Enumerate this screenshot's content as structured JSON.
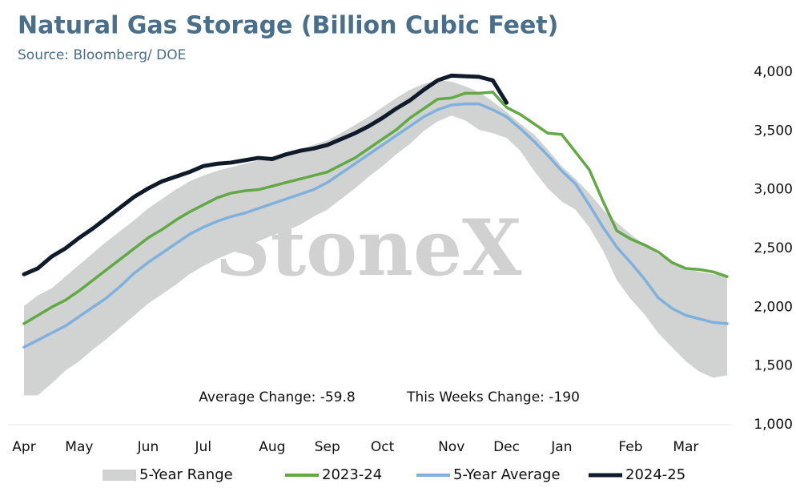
{
  "chart_data": {
    "type": "line",
    "title": "Natural Gas Storage (Billion Cubic Feet)",
    "subtitle": "Source: Bloomberg/ DOE",
    "watermark": "StoneX",
    "annotations": [
      "Average Change: -59.8",
      "This Weeks Change: -190"
    ],
    "x": [
      0,
      1,
      2,
      3,
      4,
      5,
      6,
      7,
      8,
      9,
      10,
      11,
      12,
      13,
      14,
      15,
      16,
      17,
      18,
      19,
      20,
      21,
      22,
      23,
      24,
      25,
      26,
      27,
      28,
      29,
      30,
      31,
      32,
      33,
      34,
      35,
      36,
      37,
      38,
      39,
      40,
      41,
      42,
      43,
      44,
      45,
      46,
      47,
      48,
      49,
      50,
      51
    ],
    "xlim": [
      0,
      51
    ],
    "xticks": [
      {
        "value": 0,
        "label": "Apr"
      },
      {
        "value": 4,
        "label": "May"
      },
      {
        "value": 9,
        "label": "Jun"
      },
      {
        "value": 13,
        "label": "Jul"
      },
      {
        "value": 18,
        "label": "Aug"
      },
      {
        "value": 22,
        "label": "Sep"
      },
      {
        "value": 26,
        "label": "Oct"
      },
      {
        "value": 31,
        "label": "Nov"
      },
      {
        "value": 35,
        "label": "Dec"
      },
      {
        "value": 39,
        "label": "Jan"
      },
      {
        "value": 44,
        "label": "Feb"
      },
      {
        "value": 48,
        "label": "Mar"
      }
    ],
    "ylim": [
      1000,
      4000
    ],
    "yticks": [
      {
        "value": 1000,
        "label": "1,000"
      },
      {
        "value": 1500,
        "label": "1,500"
      },
      {
        "value": 2000,
        "label": "2,000"
      },
      {
        "value": 2500,
        "label": "2,500"
      },
      {
        "value": 3000,
        "label": "3,000"
      },
      {
        "value": 3500,
        "label": "3,500"
      },
      {
        "value": 4000,
        "label": "4,000"
      }
    ],
    "grid": false,
    "legend": "bottom",
    "series": [
      {
        "name": "5-Year Range",
        "kind": "range",
        "color": "#d1d3d3",
        "values": [
          2010,
          2100,
          2160,
          2260,
          2360,
          2460,
          2560,
          2650,
          2740,
          2840,
          2920,
          3000,
          3070,
          3120,
          3160,
          3190,
          3220,
          3250,
          3280,
          3310,
          3340,
          3380,
          3420,
          3480,
          3550,
          3620,
          3700,
          3780,
          3850,
          3900,
          3930,
          3920,
          3880,
          3830,
          3750,
          3660,
          3560,
          3470,
          3340,
          3200,
          3090,
          2970,
          2830,
          2720,
          2620,
          2530,
          2450,
          2380,
          2330,
          2300,
          2280,
          2270
        ],
        "lower": [
          1250,
          1250,
          1350,
          1460,
          1540,
          1640,
          1730,
          1830,
          1930,
          2030,
          2110,
          2190,
          2280,
          2350,
          2410,
          2460,
          2510,
          2560,
          2610,
          2650,
          2700,
          2770,
          2830,
          2920,
          3010,
          3110,
          3200,
          3300,
          3390,
          3500,
          3580,
          3630,
          3590,
          3510,
          3480,
          3440,
          3330,
          3160,
          3010,
          2900,
          2830,
          2680,
          2480,
          2230,
          2070,
          1940,
          1780,
          1660,
          1540,
          1450,
          1400,
          1420
        ]
      },
      {
        "name": "2023-24",
        "color": "#62a844",
        "values": [
          1860,
          1930,
          2000,
          2060,
          2140,
          2230,
          2320,
          2410,
          2500,
          2590,
          2660,
          2740,
          2810,
          2870,
          2930,
          2970,
          2990,
          3000,
          3030,
          3060,
          3090,
          3120,
          3150,
          3210,
          3270,
          3350,
          3430,
          3510,
          3610,
          3690,
          3770,
          3780,
          3820,
          3820,
          3830,
          3700,
          3640,
          3560,
          3480,
          3470,
          3320,
          3170,
          2900,
          2650,
          2580,
          2530,
          2470,
          2380,
          2330,
          2320,
          2300,
          2260
        ]
      },
      {
        "name": "5-Year Average",
        "color": "#7fb1dc",
        "values": [
          1660,
          1720,
          1780,
          1840,
          1920,
          2000,
          2080,
          2180,
          2290,
          2380,
          2460,
          2540,
          2620,
          2680,
          2730,
          2770,
          2800,
          2840,
          2880,
          2920,
          2960,
          3000,
          3060,
          3140,
          3220,
          3300,
          3380,
          3460,
          3540,
          3620,
          3680,
          3720,
          3730,
          3730,
          3680,
          3620,
          3520,
          3410,
          3290,
          3160,
          3050,
          2870,
          2680,
          2510,
          2380,
          2240,
          2080,
          1990,
          1930,
          1900,
          1870,
          1860
        ]
      },
      {
        "name": "2024-25",
        "color": "#0f1a2a",
        "values": [
          2280,
          2330,
          2430,
          2500,
          2590,
          2670,
          2760,
          2850,
          2940,
          3010,
          3070,
          3110,
          3150,
          3200,
          3220,
          3230,
          3250,
          3270,
          3260,
          3300,
          3330,
          3350,
          3380,
          3430,
          3480,
          3540,
          3610,
          3690,
          3760,
          3850,
          3930,
          3970,
          3965,
          3960,
          3930,
          3740,
          null,
          null,
          null,
          null,
          null,
          null,
          null,
          null,
          null,
          null,
          null,
          null,
          null,
          null,
          null,
          null
        ]
      }
    ]
  }
}
